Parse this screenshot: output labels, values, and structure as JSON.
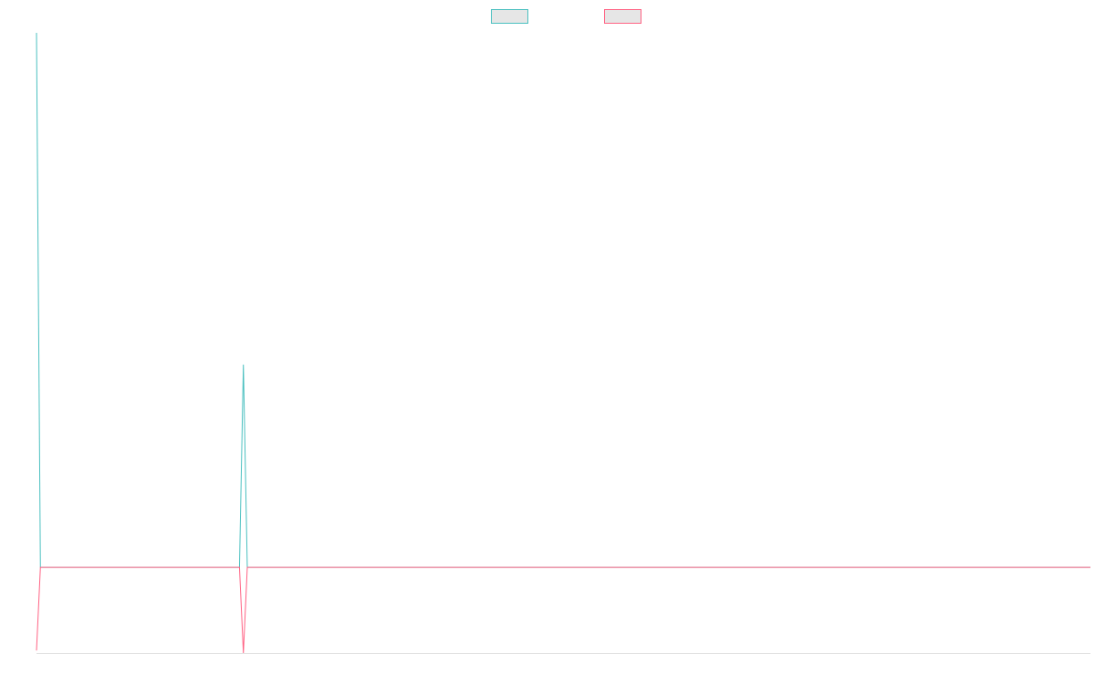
{
  "chart_data": {
    "type": "line",
    "x": [
      0,
      1,
      52,
      53,
      54,
      270
    ],
    "xlim": [
      0,
      270
    ],
    "ylim": [
      0,
      100
    ],
    "legend": "top",
    "series": [
      {
        "color": "#4bc0c0",
        "values": [
          100,
          13.8,
          13.8,
          46.5,
          13.8,
          13.8
        ]
      },
      {
        "color": "#ff6384",
        "values": [
          0.4,
          13.8,
          13.8,
          0,
          13.8,
          13.8
        ]
      }
    ]
  }
}
